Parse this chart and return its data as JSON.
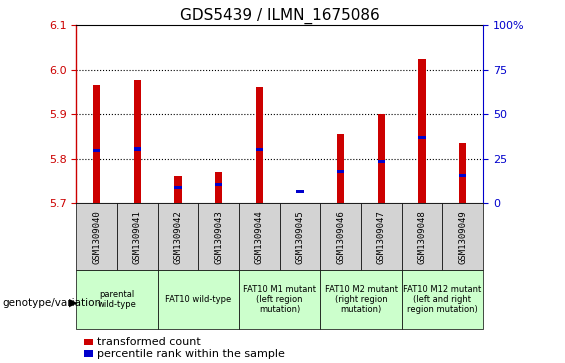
{
  "title": "GDS5439 / ILMN_1675086",
  "samples": [
    "GSM1309040",
    "GSM1309041",
    "GSM1309042",
    "GSM1309043",
    "GSM1309044",
    "GSM1309045",
    "GSM1309046",
    "GSM1309047",
    "GSM1309048",
    "GSM1309049"
  ],
  "red_values": [
    5.965,
    5.978,
    5.762,
    5.77,
    5.962,
    5.7,
    5.855,
    5.9,
    6.025,
    5.835
  ],
  "blue_values": [
    5.818,
    5.822,
    5.735,
    5.742,
    5.82,
    5.726,
    5.772,
    5.793,
    5.848,
    5.763
  ],
  "ylim_left": [
    5.7,
    6.1
  ],
  "ylim_right": [
    0,
    100
  ],
  "yticks_left": [
    5.7,
    5.8,
    5.9,
    6.0,
    6.1
  ],
  "yticks_right": [
    0,
    25,
    50,
    75,
    100
  ],
  "bar_base": 5.7,
  "bar_width": 0.18,
  "red_color": "#cc0000",
  "blue_color": "#0000cc",
  "left_axis_color": "#cc0000",
  "right_axis_color": "#0000cc",
  "genotype_groups": [
    {
      "label": "parental\nwild-type",
      "span": [
        0,
        2
      ],
      "color": "#ccffcc"
    },
    {
      "label": "FAT10 wild-type",
      "span": [
        2,
        4
      ],
      "color": "#ccffcc"
    },
    {
      "label": "FAT10 M1 mutant\n(left region\nmutation)",
      "span": [
        4,
        6
      ],
      "color": "#ccffcc"
    },
    {
      "label": "FAT10 M2 mutant\n(right region\nmutation)",
      "span": [
        6,
        8
      ],
      "color": "#ccffcc"
    },
    {
      "label": "FAT10 M12 mutant\n(left and right\nregion mutation)",
      "span": [
        8,
        10
      ],
      "color": "#ccffcc"
    }
  ],
  "legend_red_label": "transformed count",
  "legend_blue_label": "percentile rank within the sample",
  "genotype_label": "genotype/variation"
}
